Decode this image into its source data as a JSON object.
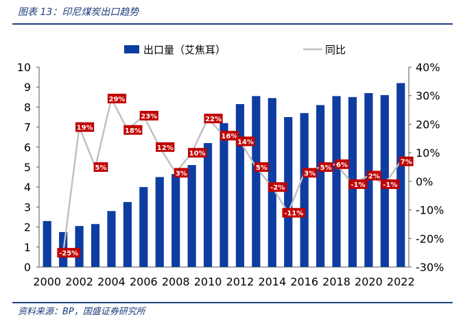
{
  "header": {
    "title": "图表 13：印尼煤炭出口趋势"
  },
  "footer": {
    "source": "资料来源：BP，国盛证券研究所"
  },
  "colors": {
    "bar": "#0d3da1",
    "line": "#c0c0c0",
    "label_bg": "#c00000",
    "frame": "#1f3f7f"
  },
  "chart_data": {
    "type": "bar",
    "categories": [
      "2000",
      "2001",
      "2002",
      "2003",
      "2004",
      "2005",
      "2006",
      "2007",
      "2008",
      "2009",
      "2010",
      "2011",
      "2012",
      "2013",
      "2014",
      "2015",
      "2016",
      "2017",
      "2018",
      "2019",
      "2020",
      "2021",
      "2022"
    ],
    "x_tick_labels": [
      "2000",
      "2002",
      "2004",
      "2006",
      "2008",
      "2010",
      "2012",
      "2014",
      "2016",
      "2018",
      "2020",
      "2022"
    ],
    "series": [
      {
        "name": "出口量（艾焦耳）",
        "type": "bar",
        "axis": "left",
        "values": [
          2.3,
          1.75,
          2.05,
          2.15,
          2.8,
          3.25,
          4.0,
          4.5,
          4.65,
          5.1,
          6.2,
          7.2,
          8.15,
          8.55,
          8.45,
          7.5,
          7.7,
          8.1,
          8.55,
          8.5,
          8.7,
          8.6,
          9.2
        ]
      },
      {
        "name": "同比",
        "type": "line",
        "axis": "right",
        "values": [
          null,
          -25,
          19,
          5,
          29,
          18,
          23,
          12,
          3,
          10,
          22,
          16,
          14,
          5,
          -2,
          -11,
          3,
          5,
          6,
          -1,
          2,
          -1,
          7
        ],
        "data_labels": [
          "",
          "-25%",
          "19%",
          "5%",
          "29%",
          "18%",
          "23%",
          "12%",
          "3%",
          "10%",
          "22%",
          "16%",
          "14%",
          "5%",
          "-2%",
          "-11%",
          "3%",
          "5%",
          "6%",
          "-1%",
          "2%",
          "-1%",
          "7%"
        ]
      }
    ],
    "y_left": {
      "min": 0,
      "max": 10,
      "ticks": [
        "0",
        "1",
        "2",
        "3",
        "4",
        "5",
        "6",
        "7",
        "8",
        "9",
        "10"
      ]
    },
    "y_right": {
      "min": -30,
      "max": 40,
      "ticks": [
        "-30%",
        "-20%",
        "-10%",
        "0%",
        "10%",
        "20%",
        "30%",
        "40%"
      ]
    },
    "legend_position": "top",
    "grid": false
  }
}
